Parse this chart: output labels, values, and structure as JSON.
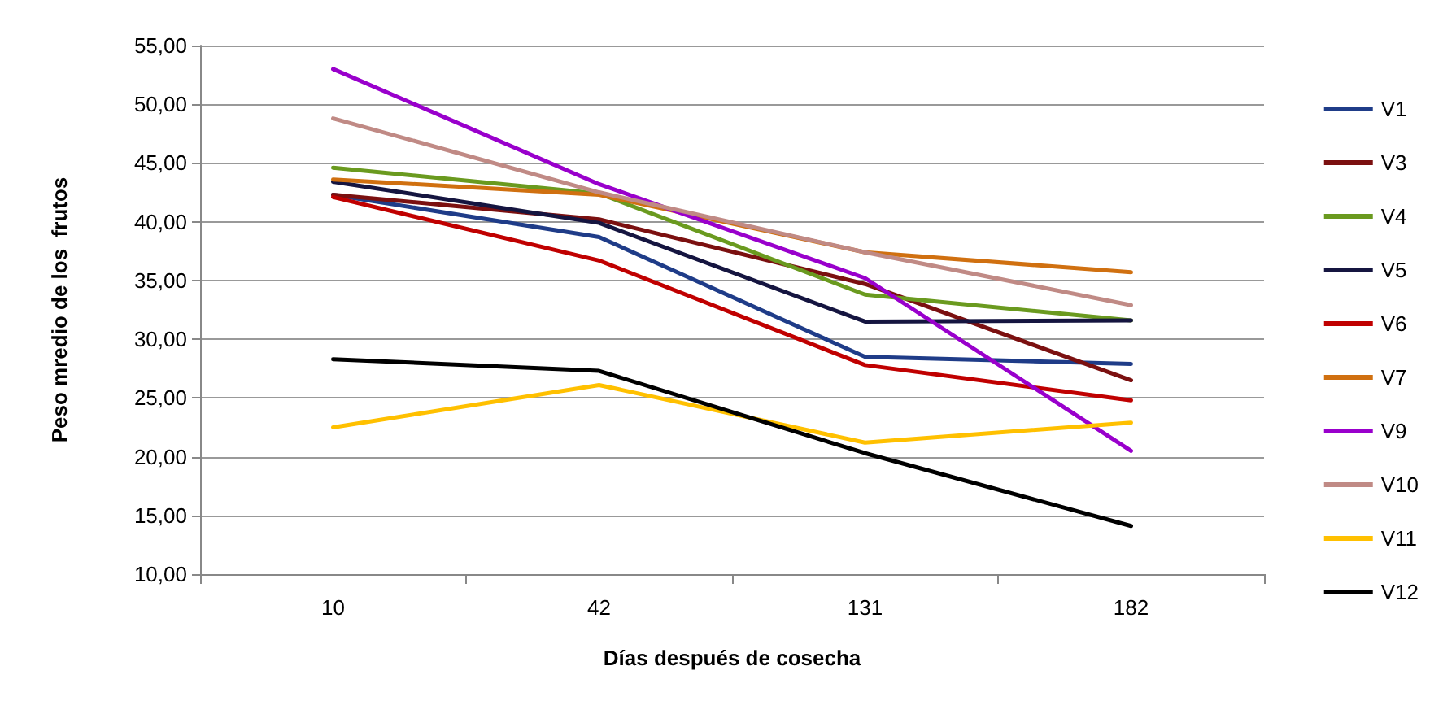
{
  "chart_data": {
    "type": "line",
    "xlabel": "Días después de cosecha",
    "ylabel": "Peso mredio de los  frutos",
    "categories": [
      "10",
      "42",
      "131",
      "182"
    ],
    "series": [
      {
        "name": "V1",
        "color": "#1f3c88",
        "values": [
          42.3,
          38.7,
          28.5,
          27.9
        ]
      },
      {
        "name": "V3",
        "color": "#7b1010",
        "values": [
          42.3,
          40.2,
          34.7,
          26.5
        ]
      },
      {
        "name": "V4",
        "color": "#6a9a1f",
        "values": [
          44.6,
          42.4,
          33.8,
          31.6
        ]
      },
      {
        "name": "V5",
        "color": "#151540",
        "values": [
          43.4,
          39.9,
          31.5,
          31.6
        ]
      },
      {
        "name": "V6",
        "color": "#c00000",
        "values": [
          42.1,
          36.7,
          27.8,
          24.8
        ]
      },
      {
        "name": "V7",
        "color": "#d07010",
        "values": [
          43.6,
          42.3,
          37.4,
          35.7
        ]
      },
      {
        "name": "V9",
        "color": "#9900cc",
        "values": [
          53.0,
          43.2,
          35.2,
          20.5
        ]
      },
      {
        "name": "V10",
        "color": "#c08a85",
        "values": [
          48.8,
          42.5,
          37.4,
          32.9
        ]
      },
      {
        "name": "V11",
        "color": "#ffc000",
        "values": [
          22.5,
          26.1,
          21.2,
          22.9
        ]
      },
      {
        "name": "V12",
        "color": "#000000",
        "values": [
          28.3,
          27.3,
          20.3,
          14.1
        ]
      }
    ],
    "ylim": [
      10,
      55
    ],
    "yticks": [
      {
        "value": 10,
        "label": "10,00"
      },
      {
        "value": 15,
        "label": "15,00"
      },
      {
        "value": 20,
        "label": "20,00"
      },
      {
        "value": 25,
        "label": "25,00"
      },
      {
        "value": 30,
        "label": "30,00"
      },
      {
        "value": 35,
        "label": "35,00"
      },
      {
        "value": 40,
        "label": "40,00"
      },
      {
        "value": 45,
        "label": "45,00"
      },
      {
        "value": 50,
        "label": "50,00"
      },
      {
        "value": 55,
        "label": "55,00"
      }
    ],
    "grid": "y",
    "legend": "right",
    "marker": "none",
    "line_style": "solid"
  }
}
